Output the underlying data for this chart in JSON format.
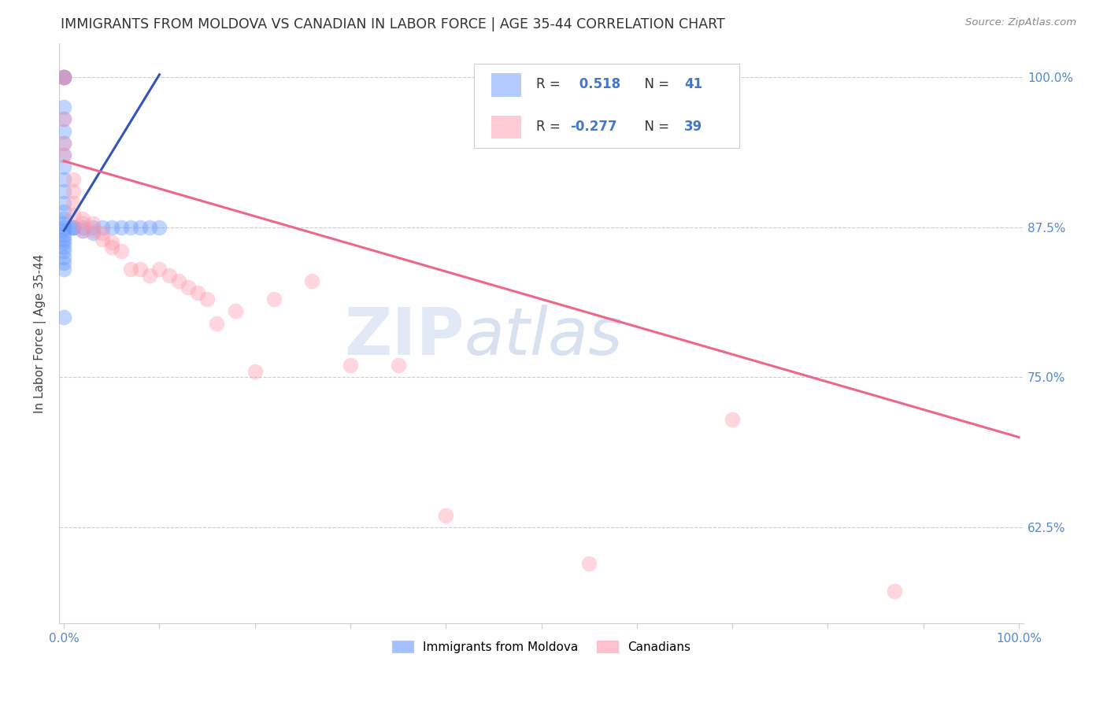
{
  "title": "IMMIGRANTS FROM MOLDOVA VS CANADIAN IN LABOR FORCE | AGE 35-44 CORRELATION CHART",
  "source": "Source: ZipAtlas.com",
  "ylabel": "In Labor Force | Age 35-44",
  "xlim": [
    -0.005,
    1.005
  ],
  "ylim": [
    0.545,
    1.028
  ],
  "xticks": [
    0.0,
    0.1,
    0.2,
    0.3,
    0.4,
    0.5,
    0.6,
    0.7,
    0.8,
    0.9,
    1.0
  ],
  "xticklabels": [
    "0.0%",
    "",
    "",
    "",
    "",
    "",
    "",
    "",
    "",
    "",
    "100.0%"
  ],
  "ytick_positions": [
    0.625,
    0.75,
    0.875,
    1.0
  ],
  "yticklabels": [
    "62.5%",
    "75.0%",
    "87.5%",
    "100.0%"
  ],
  "blue_R": 0.518,
  "blue_N": 41,
  "pink_R": -0.277,
  "pink_N": 39,
  "blue_color": "#6699ff",
  "pink_color": "#ff99aa",
  "blue_line_color": "#3355bb",
  "pink_line_color": "#ee6688",
  "watermark_zip": "ZIP",
  "watermark_atlas": "atlas",
  "legend_label_blue": "Immigrants from Moldova",
  "legend_label_pink": "Canadians",
  "blue_points_x": [
    0.0,
    0.0,
    0.0,
    0.0,
    0.0,
    0.0,
    0.0,
    0.0,
    0.0,
    0.0,
    0.0,
    0.0,
    0.0,
    0.0,
    0.0,
    0.0,
    0.0,
    0.0,
    0.0,
    0.0,
    0.0,
    0.0,
    0.0,
    0.0,
    0.0,
    0.0,
    0.0,
    0.01,
    0.01,
    0.01,
    0.02,
    0.02,
    0.03,
    0.03,
    0.04,
    0.05,
    0.06,
    0.07,
    0.08,
    0.09,
    0.1
  ],
  "blue_points_y": [
    1.0,
    1.0,
    1.0,
    1.0,
    0.975,
    0.965,
    0.955,
    0.945,
    0.935,
    0.925,
    0.915,
    0.905,
    0.895,
    0.888,
    0.882,
    0.878,
    0.875,
    0.872,
    0.868,
    0.865,
    0.862,
    0.858,
    0.855,
    0.85,
    0.845,
    0.84,
    0.8,
    0.875,
    0.875,
    0.875,
    0.875,
    0.872,
    0.875,
    0.87,
    0.875,
    0.875,
    0.875,
    0.875,
    0.875,
    0.875,
    0.875
  ],
  "pink_points_x": [
    0.0,
    0.0,
    0.0,
    0.0,
    0.0,
    0.01,
    0.01,
    0.01,
    0.01,
    0.02,
    0.02,
    0.02,
    0.03,
    0.03,
    0.04,
    0.04,
    0.05,
    0.05,
    0.06,
    0.07,
    0.08,
    0.09,
    0.1,
    0.11,
    0.12,
    0.13,
    0.14,
    0.15,
    0.16,
    0.18,
    0.2,
    0.22,
    0.26,
    0.3,
    0.35,
    0.4,
    0.55,
    0.7,
    0.87
  ],
  "pink_points_y": [
    1.0,
    1.0,
    0.965,
    0.945,
    0.935,
    0.915,
    0.905,
    0.895,
    0.885,
    0.882,
    0.878,
    0.872,
    0.878,
    0.872,
    0.87,
    0.865,
    0.862,
    0.858,
    0.855,
    0.84,
    0.84,
    0.835,
    0.84,
    0.835,
    0.83,
    0.825,
    0.82,
    0.815,
    0.795,
    0.805,
    0.755,
    0.815,
    0.83,
    0.76,
    0.76,
    0.635,
    0.595,
    0.715,
    0.572
  ],
  "blue_trendline_x": [
    0.0,
    0.1
  ],
  "blue_trendline_y": [
    0.872,
    1.002
  ],
  "pink_trendline_x": [
    0.0,
    1.0
  ],
  "pink_trendline_y": [
    0.93,
    0.7
  ]
}
